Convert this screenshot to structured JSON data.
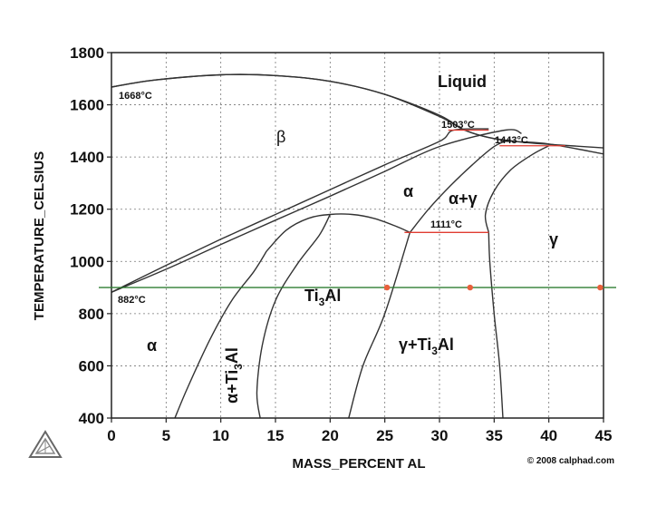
{
  "chart_data": {
    "type": "phase-diagram",
    "xlabel": "MASS_PERCENT AL",
    "ylabel": "TEMPERATURE_CELSIUS",
    "xlim": [
      0,
      45
    ],
    "ylim": [
      400,
      1800
    ],
    "x_ticks": [
      "0",
      "5",
      "10",
      "15",
      "20",
      "25",
      "30",
      "35",
      "40",
      "45"
    ],
    "y_ticks": [
      "400",
      "600",
      "800",
      "1000",
      "1200",
      "1400",
      "1600",
      "1800"
    ],
    "grid": true,
    "phase_labels": {
      "liquid": "Liquid",
      "beta": "β",
      "alpha_hi": "α",
      "alpha_gamma": "α+γ",
      "gamma": "γ",
      "ti3al_base": "Ti",
      "ti3al_sub": "3",
      "ti3al_tail": "Al",
      "alpha_lo": "α",
      "alpha_ti3al_base": "α+Ti",
      "alpha_ti3al_sub": "3",
      "alpha_ti3al_tail": "Al",
      "gamma_ti3al_base": "γ+Ti",
      "gamma_ti3al_sub": "3",
      "gamma_ti3al_tail": "Al"
    },
    "temperature_labels": [
      "1668°C",
      "1503°C",
      "1443°C",
      "1111°C",
      "882°C"
    ],
    "invariant_lines": [
      {
        "x": [
          30.8,
          34.5
        ],
        "y": 1503
      },
      {
        "x": [
          35.5,
          41.5
        ],
        "y": 1443
      },
      {
        "x": [
          26.8,
          34.5
        ],
        "y": 1111
      }
    ],
    "reference_line": {
      "y": 900,
      "color": "#2e7d32"
    },
    "reference_points": [
      {
        "x": 25.2,
        "y": 900
      },
      {
        "x": 32.8,
        "y": 900
      },
      {
        "x": 44.7,
        "y": 900
      }
    ],
    "boundaries": [
      {
        "name": "liquidus",
        "points": [
          [
            0,
            1668
          ],
          [
            4,
            1695
          ],
          [
            10,
            1715
          ],
          [
            15,
            1712
          ],
          [
            20,
            1690
          ],
          [
            25,
            1640
          ],
          [
            30,
            1560
          ],
          [
            32.3,
            1503
          ],
          [
            35,
            1470
          ],
          [
            38,
            1455
          ],
          [
            41,
            1446
          ],
          [
            45,
            1435
          ]
        ]
      },
      {
        "name": "solidus",
        "points": [
          [
            0,
            1668
          ],
          [
            4,
            1695
          ],
          [
            10,
            1715
          ],
          [
            15,
            1712
          ],
          [
            20,
            1690
          ],
          [
            25,
            1640
          ],
          [
            30,
            1555
          ],
          [
            32.3,
            1503
          ],
          [
            34.5,
            1475
          ],
          [
            37,
            1460
          ],
          [
            40,
            1450
          ],
          [
            45,
            1412
          ]
        ]
      },
      {
        "name": "beta-transus-upper",
        "points": [
          [
            0,
            882
          ],
          [
            5,
            985
          ],
          [
            10,
            1085
          ],
          [
            15,
            1180
          ],
          [
            20,
            1275
          ],
          [
            25,
            1370
          ],
          [
            30,
            1460
          ],
          [
            31.3,
            1503
          ],
          [
            34.5,
            1508
          ]
        ]
      },
      {
        "name": "beta-transus-lower",
        "points": [
          [
            0,
            882
          ],
          [
            5,
            970
          ],
          [
            10,
            1065
          ],
          [
            15,
            1158
          ],
          [
            20,
            1250
          ],
          [
            25,
            1345
          ],
          [
            30,
            1440
          ],
          [
            36,
            1503
          ],
          [
            37.5,
            1490
          ]
        ]
      },
      {
        "name": "alpha-dome",
        "points": [
          [
            14.2,
            1040
          ],
          [
            16,
            1120
          ],
          [
            18,
            1165
          ],
          [
            20,
            1180
          ],
          [
            22,
            1180
          ],
          [
            24,
            1165
          ],
          [
            26,
            1135
          ],
          [
            27.3,
            1111
          ]
        ]
      },
      {
        "name": "alpha-gamma-left",
        "points": [
          [
            27.3,
            1111
          ],
          [
            29,
            1200
          ],
          [
            31,
            1290
          ],
          [
            33,
            1370
          ],
          [
            35,
            1440
          ],
          [
            36.5,
            1468
          ]
        ]
      },
      {
        "name": "gamma-solvus",
        "points": [
          [
            34.5,
            1111
          ],
          [
            34.2,
            1180
          ],
          [
            35,
            1270
          ],
          [
            36.5,
            1350
          ],
          [
            38.5,
            1410
          ],
          [
            40,
            1443
          ]
        ]
      },
      {
        "name": "ti3al-left",
        "points": [
          [
            5.8,
            400
          ],
          [
            7,
            520
          ],
          [
            9,
            700
          ],
          [
            11,
            850
          ],
          [
            13,
            960
          ],
          [
            14.2,
            1040
          ]
        ]
      },
      {
        "name": "ti3al-right-left",
        "points": [
          [
            13.6,
            400
          ],
          [
            13.3,
            500
          ],
          [
            13.8,
            680
          ],
          [
            15,
            850
          ],
          [
            17,
            990
          ],
          [
            19,
            1100
          ],
          [
            20,
            1180
          ]
        ]
      },
      {
        "name": "ti3al-right",
        "points": [
          [
            21.7,
            400
          ],
          [
            23,
            600
          ],
          [
            25,
            800
          ],
          [
            27.3,
            1111
          ]
        ]
      },
      {
        "name": "gamma-left",
        "points": [
          [
            35.8,
            400
          ],
          [
            35.5,
            600
          ],
          [
            35,
            800
          ],
          [
            34.6,
            1000
          ],
          [
            34.5,
            1111
          ]
        ]
      }
    ]
  },
  "credit": "© 2008 calphad.com",
  "logo_name": "calphad-triangle-logo"
}
